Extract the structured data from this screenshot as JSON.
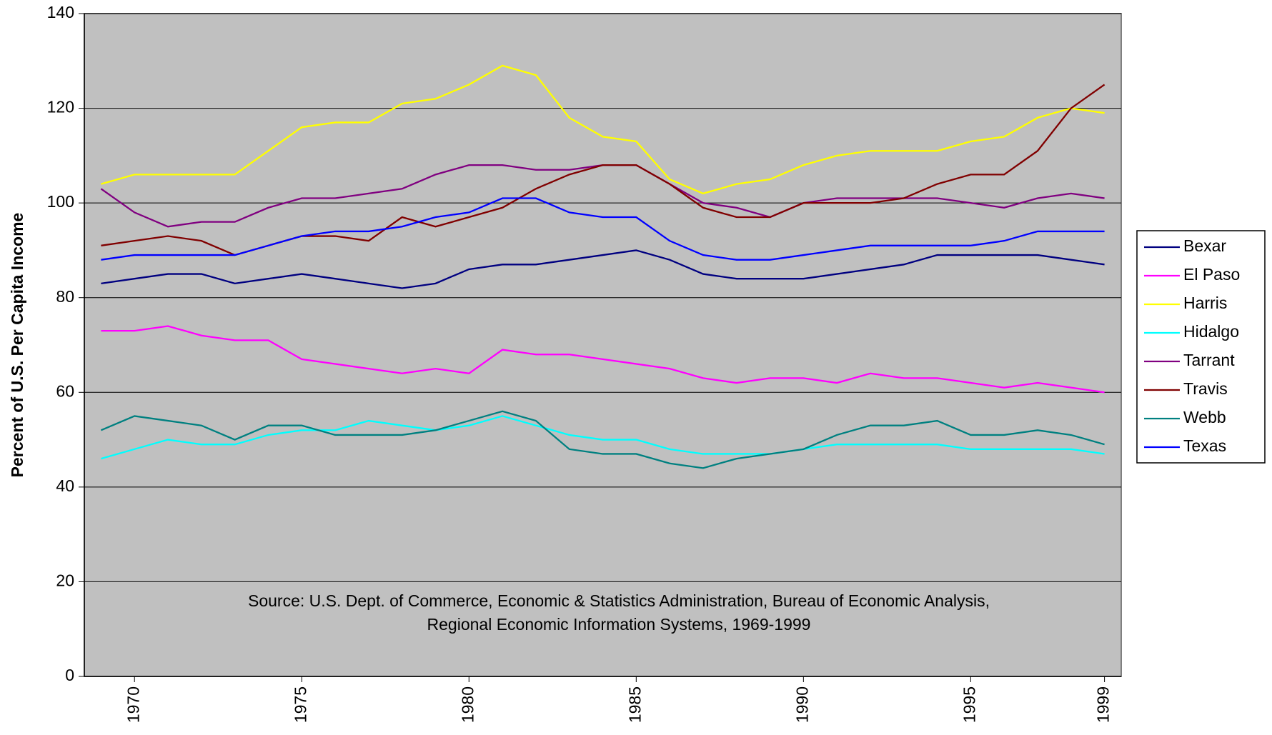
{
  "chart_data": {
    "type": "line",
    "y_label": "Percent of U.S. Per Capita Income",
    "annotations": [
      "Source: U.S. Dept. of Commerce, Economic & Statistics Administration, Bureau of Economic Analysis,",
      "Regional Economic Information Systems, 1969-1999"
    ],
    "x": [
      1969,
      1970,
      1971,
      1972,
      1973,
      1974,
      1975,
      1976,
      1977,
      1978,
      1979,
      1980,
      1981,
      1982,
      1983,
      1984,
      1985,
      1986,
      1987,
      1988,
      1989,
      1990,
      1991,
      1992,
      1993,
      1994,
      1995,
      1996,
      1997,
      1998,
      1999
    ],
    "xlim": [
      1968.5,
      1999.5
    ],
    "xticks": [
      1970,
      1975,
      1980,
      1985,
      1990,
      1995,
      1999
    ],
    "ylim": [
      0,
      140
    ],
    "yticks": [
      0,
      20,
      40,
      60,
      80,
      100,
      120,
      140
    ],
    "grid": true,
    "legend": "right",
    "series": [
      {
        "name": "Bexar",
        "color": "#000080",
        "values": [
          83,
          84,
          85,
          85,
          83,
          84,
          85,
          84,
          83,
          82,
          83,
          86,
          87,
          87,
          88,
          89,
          90,
          88,
          85,
          84,
          84,
          84,
          85,
          86,
          87,
          89,
          89,
          89,
          89,
          88,
          87
        ]
      },
      {
        "name": "El Paso",
        "color": "#ff00ff",
        "values": [
          73,
          73,
          74,
          72,
          71,
          71,
          67,
          66,
          65,
          64,
          65,
          64,
          69,
          68,
          68,
          67,
          66,
          65,
          63,
          62,
          63,
          63,
          62,
          64,
          63,
          63,
          62,
          61,
          62,
          61,
          60
        ]
      },
      {
        "name": "Harris",
        "color": "#ffff00",
        "values": [
          104,
          106,
          106,
          106,
          106,
          111,
          116,
          117,
          117,
          121,
          122,
          125,
          129,
          127,
          118,
          114,
          113,
          105,
          102,
          104,
          105,
          108,
          110,
          111,
          111,
          111,
          113,
          114,
          118,
          120,
          119
        ]
      },
      {
        "name": "Hidalgo",
        "color": "#00ffff",
        "values": [
          46,
          48,
          50,
          49,
          49,
          51,
          52,
          52,
          54,
          53,
          52,
          53,
          55,
          53,
          51,
          50,
          50,
          48,
          47,
          47,
          47,
          48,
          49,
          49,
          49,
          49,
          48,
          48,
          48,
          48,
          47
        ]
      },
      {
        "name": "Tarrant",
        "color": "#800080",
        "values": [
          103,
          98,
          95,
          96,
          96,
          99,
          101,
          101,
          102,
          103,
          106,
          108,
          108,
          107,
          107,
          108,
          108,
          104,
          100,
          99,
          97,
          100,
          101,
          101,
          101,
          101,
          100,
          99,
          101,
          102,
          101
        ]
      },
      {
        "name": "Travis",
        "color": "#800000",
        "values": [
          91,
          92,
          93,
          92,
          89,
          91,
          93,
          93,
          92,
          97,
          95,
          97,
          99,
          103,
          106,
          108,
          108,
          104,
          99,
          97,
          97,
          100,
          100,
          100,
          101,
          104,
          106,
          106,
          111,
          120,
          125
        ]
      },
      {
        "name": "Webb",
        "color": "#008080",
        "values": [
          52,
          55,
          54,
          53,
          50,
          53,
          53,
          51,
          51,
          51,
          52,
          54,
          56,
          54,
          48,
          47,
          47,
          45,
          44,
          46,
          47,
          48,
          51,
          53,
          53,
          54,
          51,
          51,
          52,
          51,
          49
        ]
      },
      {
        "name": "Texas",
        "color": "#0000ff",
        "values": [
          88,
          89,
          89,
          89,
          89,
          91,
          93,
          94,
          94,
          95,
          97,
          98,
          101,
          101,
          98,
          97,
          97,
          92,
          89,
          88,
          88,
          89,
          90,
          91,
          91,
          91,
          91,
          92,
          94,
          94,
          94
        ]
      }
    ]
  }
}
